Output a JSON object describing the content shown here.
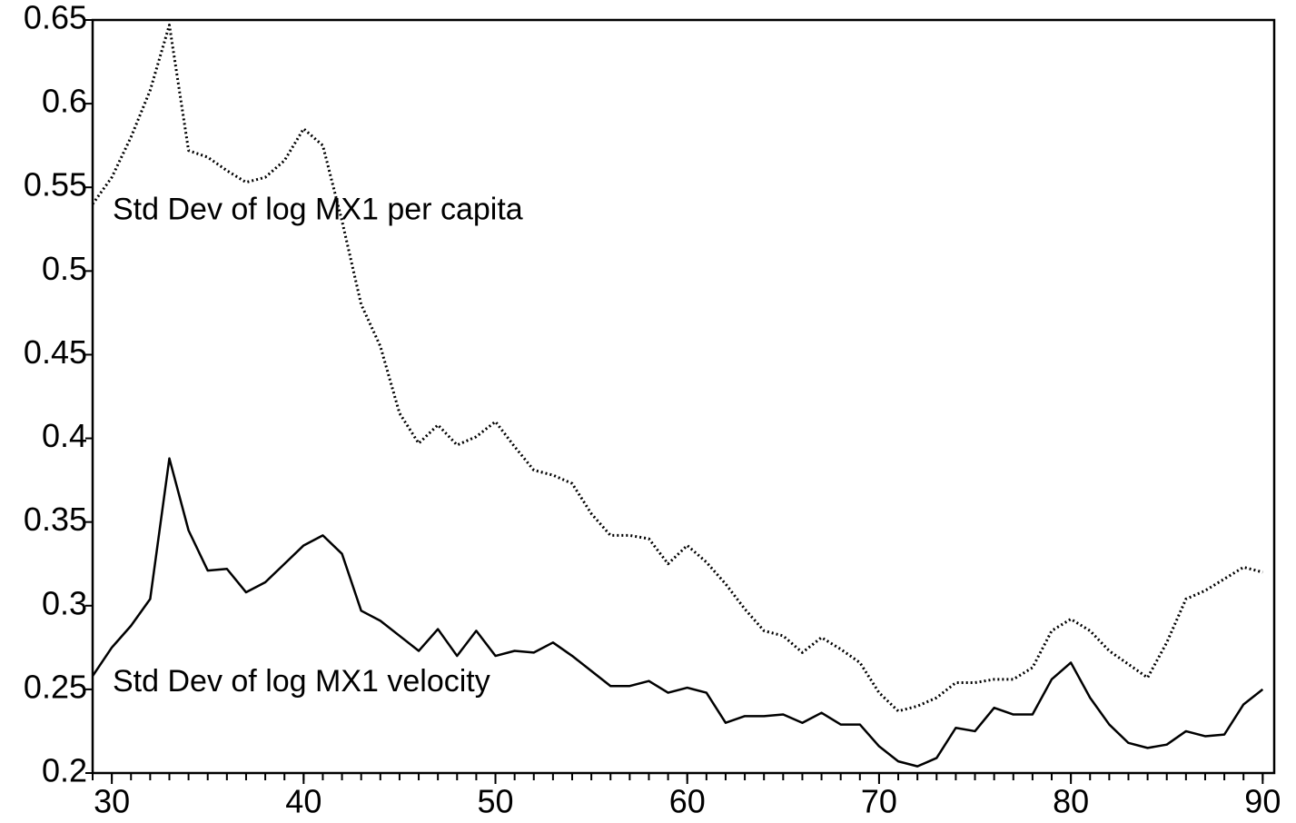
{
  "chart_data": {
    "type": "line",
    "x": [
      29,
      30,
      31,
      32,
      33,
      34,
      35,
      36,
      37,
      38,
      39,
      40,
      41,
      42,
      43,
      44,
      45,
      46,
      47,
      48,
      49,
      50,
      51,
      52,
      53,
      54,
      55,
      56,
      57,
      58,
      59,
      60,
      61,
      62,
      63,
      64,
      65,
      66,
      67,
      68,
      69,
      70,
      71,
      72,
      73,
      74,
      75,
      76,
      77,
      78,
      79,
      80,
      81,
      82,
      83,
      84,
      85,
      86,
      87,
      88,
      89,
      90
    ],
    "series": [
      {
        "name": "Std Dev of log MX1 per capita",
        "color": "#000000",
        "style": "dotted",
        "values": [
          0.54,
          0.556,
          0.58,
          0.608,
          0.647,
          0.572,
          0.568,
          0.56,
          0.553,
          0.556,
          0.566,
          0.585,
          0.575,
          0.53,
          0.48,
          0.455,
          0.415,
          0.397,
          0.408,
          0.396,
          0.401,
          0.41,
          0.395,
          0.381,
          0.378,
          0.373,
          0.355,
          0.342,
          0.342,
          0.34,
          0.325,
          0.336,
          0.326,
          0.313,
          0.298,
          0.285,
          0.282,
          0.272,
          0.281,
          0.274,
          0.266,
          0.248,
          0.237,
          0.24,
          0.245,
          0.254,
          0.254,
          0.256,
          0.256,
          0.263,
          0.285,
          0.292,
          0.285,
          0.273,
          0.265,
          0.257,
          0.278,
          0.304,
          0.309,
          0.316,
          0.323,
          0.32
        ]
      },
      {
        "name": "Std Dev of log MX1 velocity",
        "color": "#000000",
        "style": "solid",
        "values": [
          0.258,
          0.275,
          0.288,
          0.304,
          0.388,
          0.345,
          0.321,
          0.322,
          0.308,
          0.314,
          0.325,
          0.336,
          0.342,
          0.331,
          0.297,
          0.291,
          0.282,
          0.273,
          0.286,
          0.27,
          0.285,
          0.27,
          0.273,
          0.272,
          0.278,
          0.27,
          0.261,
          0.252,
          0.252,
          0.255,
          0.248,
          0.251,
          0.248,
          0.23,
          0.234,
          0.234,
          0.235,
          0.23,
          0.236,
          0.229,
          0.229,
          0.216,
          0.207,
          0.204,
          0.209,
          0.227,
          0.225,
          0.239,
          0.235,
          0.235,
          0.256,
          0.266,
          0.245,
          0.229,
          0.218,
          0.215,
          0.217,
          0.225,
          0.222,
          0.223,
          0.241,
          0.25
        ]
      }
    ],
    "xlim": [
      29,
      90.6
    ],
    "xticks": [
      30,
      40,
      50,
      60,
      70,
      80,
      90
    ],
    "ylim": [
      0.2,
      0.65
    ],
    "yticks": [
      0.2,
      0.25,
      0.3,
      0.35,
      0.4,
      0.45,
      0.5,
      0.55,
      0.6,
      0.65
    ],
    "grid": false
  }
}
